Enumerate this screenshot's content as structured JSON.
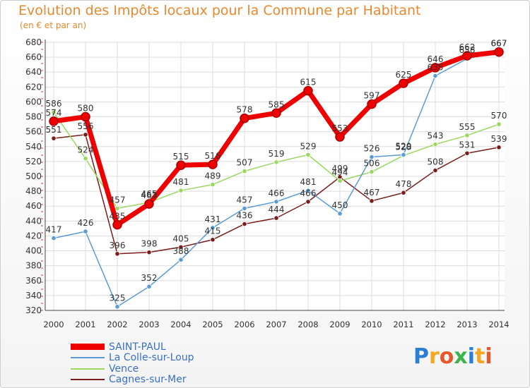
{
  "header": {
    "title": "Evolution des Impôts locaux pour la Commune par Habitant",
    "subtitle": "(en € et par an)"
  },
  "logo": {
    "text": "Proxiti",
    "letters": [
      "P",
      "r",
      "o",
      "x",
      "i",
      "t",
      "i"
    ],
    "colors": [
      "#2a7fd4",
      "#f5a623",
      "#e8572a",
      "#3cb44b",
      "#2a7fd4",
      "#f5a623",
      "#e8572a"
    ]
  },
  "chart_data": {
    "type": "line",
    "title": "Evolution des Impôts locaux pour la Commune par Habitant",
    "subtitle": "(en € et par an)",
    "xlabel": "",
    "ylabel": "",
    "x": [
      "2000",
      "2001",
      "2002",
      "2003",
      "2004",
      "2005",
      "2006",
      "2007",
      "2008",
      "2009",
      "2010",
      "2011",
      "2012",
      "2013",
      "2014"
    ],
    "yticks": [
      320,
      340,
      360,
      380,
      400,
      420,
      440,
      460,
      480,
      500,
      520,
      540,
      560,
      580,
      600,
      620,
      640,
      660,
      680
    ],
    "ylim": [
      320,
      680
    ],
    "grid": true,
    "legend": "bottom-left",
    "series": [
      {
        "name": "SAINT-PAUL",
        "color": "#ee0000",
        "values": [
          574,
          580,
          435,
          463,
          515,
          516,
          578,
          585,
          615,
          553,
          597,
          625,
          646,
          662,
          667
        ],
        "labels": [
          "574",
          "580",
          "435",
          "463",
          "515",
          "516",
          "578",
          "585",
          "615",
          "553",
          "597",
          "625",
          "646",
          "662",
          "667"
        ]
      },
      {
        "name": "La Colle-sur-Loup",
        "color": "#5a9bd4",
        "values": [
          417,
          426,
          325,
          352,
          388,
          431,
          457,
          466,
          481,
          450,
          526,
          529,
          635,
          658,
          667
        ],
        "labels": [
          "417",
          "426",
          "325",
          "352",
          "388",
          "431",
          "457",
          "466",
          "481",
          "450",
          "526",
          "529",
          "635",
          "658",
          "667"
        ]
      },
      {
        "name": "Vence",
        "color": "#9ad860",
        "values": [
          586,
          524,
          457,
          465,
          481,
          489,
          507,
          519,
          529,
          494,
          506,
          528,
          543,
          555,
          570
        ],
        "labels": [
          "586",
          "524",
          "457",
          "465",
          "481",
          "489",
          "507",
          "519",
          "529",
          "494",
          "506",
          "528",
          "543",
          "555",
          "570"
        ]
      },
      {
        "name": "Cagnes-sur-Mer",
        "color": "#7a1c1c",
        "values": [
          551,
          556,
          396,
          398,
          405,
          415,
          436,
          444,
          466,
          499,
          467,
          478,
          508,
          531,
          539
        ],
        "labels": [
          "551",
          "556",
          "396",
          "398",
          "405",
          "415",
          "436",
          "444",
          "466",
          "499",
          "467",
          "478",
          "508",
          "531",
          "539"
        ]
      }
    ]
  }
}
